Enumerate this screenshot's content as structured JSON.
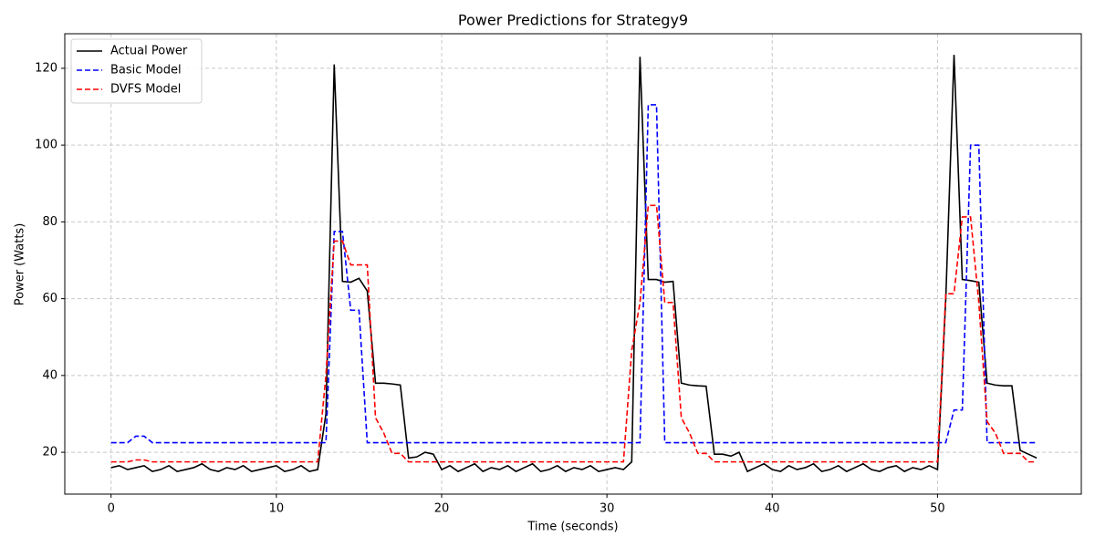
{
  "chart_data": {
    "type": "line",
    "title": "Power Predictions for Strategy9",
    "x_label": "Time (seconds)",
    "y_label": "Power (Watts)",
    "x": [
      0,
      0.5,
      1,
      1.5,
      2,
      2.5,
      3,
      3.5,
      4,
      4.5,
      5,
      5.5,
      6,
      6.5,
      7,
      7.5,
      8,
      8.5,
      9,
      9.5,
      10,
      10.5,
      11,
      11.5,
      12,
      12.5,
      13,
      13.5,
      14,
      14.5,
      15,
      15.5,
      16,
      16.5,
      17,
      17.5,
      18,
      18.5,
      19,
      19.5,
      20,
      20.5,
      21,
      21.5,
      22,
      22.5,
      23,
      23.5,
      24,
      24.5,
      25,
      25.5,
      26,
      26.5,
      27,
      27.5,
      28,
      28.5,
      29,
      29.5,
      30,
      30.5,
      31,
      31.5,
      32,
      32.5,
      33,
      33.5,
      34,
      34.5,
      35,
      35.5,
      36,
      36.5,
      37,
      37.5,
      38,
      38.5,
      39,
      39.5,
      40,
      40.5,
      41,
      41.5,
      42,
      42.5,
      43,
      43.5,
      44,
      44.5,
      45,
      45.5,
      46,
      46.5,
      47,
      47.5,
      48,
      48.5,
      49,
      49.5,
      50,
      50.5,
      51,
      51.5,
      52,
      52.5,
      53,
      53.5,
      54,
      54.5,
      55,
      55.5,
      56
    ],
    "series": [
      {
        "name": "Actual Power",
        "color": "#000000",
        "linestyle": "solid",
        "values": [
          16,
          16.5,
          15.5,
          16,
          16.5,
          15,
          15.5,
          16.5,
          15,
          15.5,
          16,
          17,
          15.5,
          15,
          16,
          15.5,
          16.5,
          15,
          15.5,
          16,
          16.5,
          15,
          15.5,
          16.5,
          15,
          15.5,
          30,
          121,
          64.5,
          64.3,
          65.3,
          62,
          38,
          38,
          37.8,
          37.5,
          18.5,
          18.8,
          20,
          19.5,
          15.5,
          16.5,
          15,
          16,
          17,
          15,
          16,
          15.5,
          16.5,
          15,
          16,
          17,
          15,
          15.5,
          16.5,
          15,
          16,
          15.5,
          16.5,
          15,
          15.5,
          16,
          15.5,
          17.5,
          123,
          65,
          65,
          64.3,
          64.5,
          38,
          37.5,
          37.3,
          37.2,
          19.5,
          19.5,
          19,
          20,
          15,
          16,
          17,
          15.5,
          15,
          16.5,
          15.5,
          16,
          17,
          15,
          15.5,
          16.5,
          15,
          16,
          17,
          15.5,
          15,
          16,
          16.5,
          15,
          16,
          15.5,
          16.5,
          15.5,
          60,
          123.5,
          65,
          64.7,
          64.3,
          38,
          37.5,
          37.3,
          37.3,
          20.5,
          19.5,
          18.5
        ]
      },
      {
        "name": "Basic Model",
        "color": "#0000ff",
        "linestyle": "dashed",
        "values": [
          22.5,
          22.5,
          22.5,
          24.2,
          24.2,
          22.5,
          22.5,
          22.5,
          22.5,
          22.5,
          22.5,
          22.5,
          22.5,
          22.5,
          22.5,
          22.5,
          22.5,
          22.5,
          22.5,
          22.5,
          22.5,
          22.5,
          22.5,
          22.5,
          22.5,
          22.5,
          22.5,
          77.5,
          77.5,
          57,
          57,
          22.5,
          22.5,
          22.5,
          22.5,
          22.5,
          22.5,
          22.5,
          22.5,
          22.5,
          22.5,
          22.5,
          22.5,
          22.5,
          22.5,
          22.5,
          22.5,
          22.5,
          22.5,
          22.5,
          22.5,
          22.5,
          22.5,
          22.5,
          22.5,
          22.5,
          22.5,
          22.5,
          22.5,
          22.5,
          22.5,
          22.5,
          22.5,
          22.5,
          22.5,
          110.5,
          110.5,
          22.5,
          22.5,
          22.5,
          22.5,
          22.5,
          22.5,
          22.5,
          22.5,
          22.5,
          22.5,
          22.5,
          22.5,
          22.5,
          22.5,
          22.5,
          22.5,
          22.5,
          22.5,
          22.5,
          22.5,
          22.5,
          22.5,
          22.5,
          22.5,
          22.5,
          22.5,
          22.5,
          22.5,
          22.5,
          22.5,
          22.5,
          22.5,
          22.5,
          22.5,
          22.5,
          31,
          31,
          100,
          100,
          22.5,
          22.5,
          22.5,
          22.5,
          22.5,
          22.5,
          22.5
        ]
      },
      {
        "name": "DVFS Model",
        "color": "#ff0000",
        "linestyle": "dashed",
        "values": [
          17.5,
          17.5,
          17.5,
          18,
          18,
          17.5,
          17.5,
          17.5,
          17.5,
          17.5,
          17.5,
          17.5,
          17.5,
          17.5,
          17.5,
          17.5,
          17.5,
          17.5,
          17.5,
          17.5,
          17.5,
          17.5,
          17.5,
          17.5,
          17.5,
          17.5,
          40,
          75,
          75,
          68.8,
          68.8,
          68.8,
          29,
          25,
          19.7,
          19.7,
          17.5,
          17.5,
          17.5,
          17.5,
          17.5,
          17.5,
          17.5,
          17.5,
          17.5,
          17.5,
          17.5,
          17.5,
          17.5,
          17.5,
          17.5,
          17.5,
          17.5,
          17.5,
          17.5,
          17.5,
          17.5,
          17.5,
          17.5,
          17.5,
          17.5,
          17.5,
          17.5,
          46.5,
          59,
          84.3,
          84.3,
          59,
          59,
          29,
          25,
          19.7,
          19.7,
          17.5,
          17.5,
          17.5,
          17.5,
          17.5,
          17.5,
          17.5,
          17.5,
          17.5,
          17.5,
          17.5,
          17.5,
          17.5,
          17.5,
          17.5,
          17.5,
          17.5,
          17.5,
          17.5,
          17.5,
          17.5,
          17.5,
          17.5,
          17.5,
          17.5,
          17.5,
          17.5,
          17.5,
          61.3,
          61.3,
          81.3,
          81.3,
          59,
          28,
          25,
          19.7,
          19.7,
          19.7,
          17.5,
          17.5
        ]
      }
    ],
    "xlim": [
      -2.8,
      58.7
    ],
    "ylim": [
      9.1,
      129.0
    ],
    "xticks": [
      0,
      10,
      20,
      30,
      40,
      50
    ],
    "yticks": [
      20,
      40,
      60,
      80,
      100,
      120
    ],
    "grid": true,
    "legend": "upper-left"
  }
}
